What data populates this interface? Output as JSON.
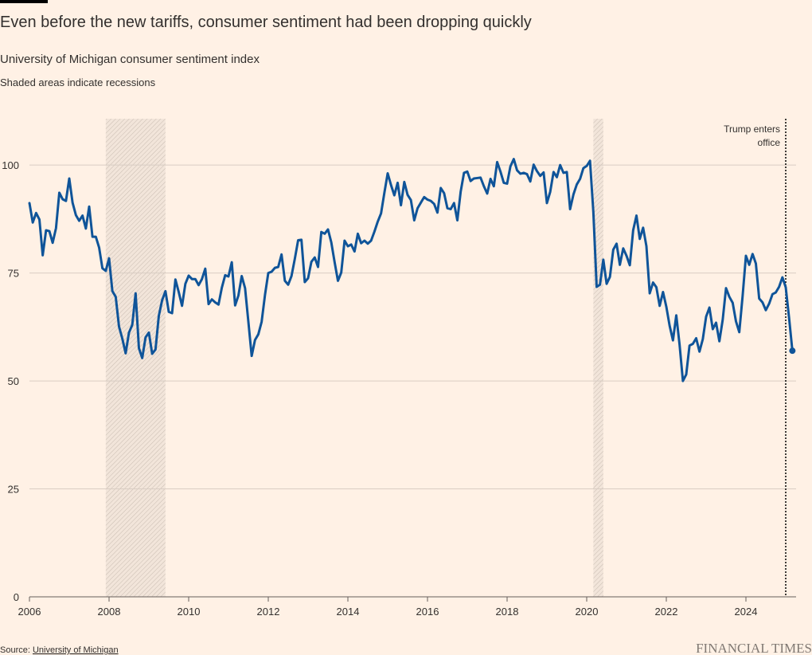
{
  "chart_data": {
    "type": "line",
    "title": "Even before the new tariffs, consumer sentiment had been dropping quickly",
    "subtitle": "University of Michigan consumer sentiment index",
    "note": "Shaded areas indicate recessions",
    "source_label": "Source:",
    "source_link": "University of Michigan",
    "brand": "FINANCIAL TIMES",
    "annotation": {
      "lines": [
        "Trump enters",
        "office"
      ],
      "x": 2025.0
    },
    "recessions": [
      [
        2007.917,
        2009.417
      ],
      [
        2020.167,
        2020.417
      ]
    ],
    "xlim": [
      2006,
      2025.2
    ],
    "xticks": [
      2006,
      2008,
      2010,
      2012,
      2014,
      2016,
      2018,
      2020,
      2022,
      2024
    ],
    "ylim": [
      0,
      110
    ],
    "yticks": [
      0,
      25,
      50,
      75,
      100
    ],
    "grid": true,
    "x": [
      2006,
      2006.083,
      2006.167,
      2006.25,
      2006.333,
      2006.417,
      2006.5,
      2006.583,
      2006.667,
      2006.75,
      2006.833,
      2006.917,
      2007,
      2007.083,
      2007.167,
      2007.25,
      2007.333,
      2007.417,
      2007.5,
      2007.583,
      2007.667,
      2007.75,
      2007.833,
      2007.917,
      2008,
      2008.083,
      2008.167,
      2008.25,
      2008.333,
      2008.417,
      2008.5,
      2008.583,
      2008.667,
      2008.75,
      2008.833,
      2008.917,
      2009,
      2009.083,
      2009.167,
      2009.25,
      2009.333,
      2009.417,
      2009.5,
      2009.583,
      2009.667,
      2009.75,
      2009.833,
      2009.917,
      2010,
      2010.083,
      2010.167,
      2010.25,
      2010.333,
      2010.417,
      2010.5,
      2010.583,
      2010.667,
      2010.75,
      2010.833,
      2010.917,
      2011,
      2011.083,
      2011.167,
      2011.25,
      2011.333,
      2011.417,
      2011.5,
      2011.583,
      2011.667,
      2011.75,
      2011.833,
      2011.917,
      2012,
      2012.083,
      2012.167,
      2012.25,
      2012.333,
      2012.417,
      2012.5,
      2012.583,
      2012.667,
      2012.75,
      2012.833,
      2012.917,
      2013,
      2013.083,
      2013.167,
      2013.25,
      2013.333,
      2013.417,
      2013.5,
      2013.583,
      2013.667,
      2013.75,
      2013.833,
      2013.917,
      2014,
      2014.083,
      2014.167,
      2014.25,
      2014.333,
      2014.417,
      2014.5,
      2014.583,
      2014.667,
      2014.75,
      2014.833,
      2014.917,
      2015,
      2015.083,
      2015.167,
      2015.25,
      2015.333,
      2015.417,
      2015.5,
      2015.583,
      2015.667,
      2015.75,
      2015.833,
      2015.917,
      2016,
      2016.083,
      2016.167,
      2016.25,
      2016.333,
      2016.417,
      2016.5,
      2016.583,
      2016.667,
      2016.75,
      2016.833,
      2016.917,
      2017,
      2017.083,
      2017.167,
      2017.25,
      2017.333,
      2017.417,
      2017.5,
      2017.583,
      2017.667,
      2017.75,
      2017.833,
      2017.917,
      2018,
      2018.083,
      2018.167,
      2018.25,
      2018.333,
      2018.417,
      2018.5,
      2018.583,
      2018.667,
      2018.75,
      2018.833,
      2018.917,
      2019,
      2019.083,
      2019.167,
      2019.25,
      2019.333,
      2019.417,
      2019.5,
      2019.583,
      2019.667,
      2019.75,
      2019.833,
      2019.917,
      2020,
      2020.083,
      2020.167,
      2020.25,
      2020.333,
      2020.417,
      2020.5,
      2020.583,
      2020.667,
      2020.75,
      2020.833,
      2020.917,
      2021,
      2021.083,
      2021.167,
      2021.25,
      2021.333,
      2021.417,
      2021.5,
      2021.583,
      2021.667,
      2021.75,
      2021.833,
      2021.917,
      2022,
      2022.083,
      2022.167,
      2022.25,
      2022.333,
      2022.417,
      2022.5,
      2022.583,
      2022.667,
      2022.75,
      2022.833,
      2022.917,
      2023,
      2023.083,
      2023.167,
      2023.25,
      2023.333,
      2023.417,
      2023.5,
      2023.583,
      2023.667,
      2023.75,
      2023.833,
      2023.917,
      2024,
      2024.083,
      2024.167,
      2024.25,
      2024.333,
      2024.417,
      2024.5,
      2024.583,
      2024.667,
      2024.75,
      2024.833,
      2024.917,
      2025,
      2025.083,
      2025.167
    ],
    "series": [
      {
        "color": "#0f5499",
        "values": [
          91.2,
          86.7,
          88.9,
          87.4,
          79.1,
          84.9,
          84.7,
          82.0,
          85.4,
          93.6,
          92.1,
          91.7,
          96.9,
          91.3,
          88.4,
          87.1,
          88.3,
          85.3,
          90.4,
          83.4,
          83.4,
          80.9,
          76.1,
          75.5,
          78.4,
          70.8,
          69.5,
          62.6,
          59.8,
          56.4,
          61.2,
          63.0,
          70.3,
          57.6,
          55.3,
          60.1,
          61.2,
          56.3,
          57.3,
          65.1,
          68.7,
          70.8,
          66.0,
          65.7,
          73.5,
          70.6,
          67.4,
          72.5,
          74.4,
          73.6,
          73.6,
          72.2,
          73.6,
          76.0,
          67.8,
          68.9,
          68.2,
          67.7,
          71.6,
          74.5,
          74.2,
          77.5,
          67.5,
          69.8,
          74.3,
          71.5,
          63.7,
          55.8,
          59.5,
          60.8,
          63.7,
          69.9,
          75.0,
          75.3,
          76.2,
          76.4,
          79.3,
          73.2,
          72.3,
          74.3,
          78.3,
          82.6,
          82.7,
          72.9,
          73.8,
          77.6,
          78.6,
          76.4,
          84.5,
          84.1,
          85.1,
          82.1,
          77.5,
          73.2,
          75.1,
          82.5,
          81.2,
          81.6,
          80.0,
          84.1,
          81.9,
          82.5,
          81.8,
          82.5,
          84.6,
          86.9,
          88.8,
          93.6,
          98.1,
          95.4,
          93.0,
          95.9,
          90.7,
          96.1,
          93.1,
          91.9,
          87.2,
          90.0,
          91.3,
          92.6,
          92.0,
          91.7,
          91.0,
          89.0,
          94.7,
          93.5,
          90.0,
          89.8,
          91.2,
          87.2,
          93.8,
          98.2,
          98.5,
          96.3,
          96.9,
          97.0,
          97.1,
          95.1,
          93.4,
          96.8,
          95.1,
          100.7,
          98.5,
          95.9,
          95.7,
          99.7,
          101.4,
          98.8,
          98.0,
          98.2,
          97.9,
          96.2,
          100.1,
          98.6,
          97.5,
          98.3,
          91.2,
          93.8,
          98.4,
          97.2,
          100.0,
          98.2,
          98.4,
          89.8,
          93.2,
          95.5,
          96.8,
          99.3,
          99.8,
          101.0,
          89.1,
          71.8,
          72.3,
          78.1,
          72.5,
          74.1,
          80.4,
          81.8,
          76.9,
          80.7,
          79.0,
          76.8,
          84.9,
          88.3,
          82.9,
          85.5,
          81.2,
          70.3,
          72.8,
          71.7,
          67.4,
          70.6,
          67.2,
          62.8,
          59.4,
          65.2,
          58.4,
          50.0,
          51.5,
          58.2,
          58.6,
          59.9,
          56.8,
          59.7,
          64.9,
          67.0,
          62.0,
          63.5,
          59.2,
          64.2,
          71.5,
          69.5,
          68.1,
          63.8,
          61.3,
          69.7,
          79.0,
          76.9,
          79.4,
          77.2,
          69.1,
          68.2,
          66.4,
          67.9,
          70.1,
          70.5,
          71.8,
          74.0,
          71.7,
          64.7,
          57.0
        ]
      }
    ]
  }
}
